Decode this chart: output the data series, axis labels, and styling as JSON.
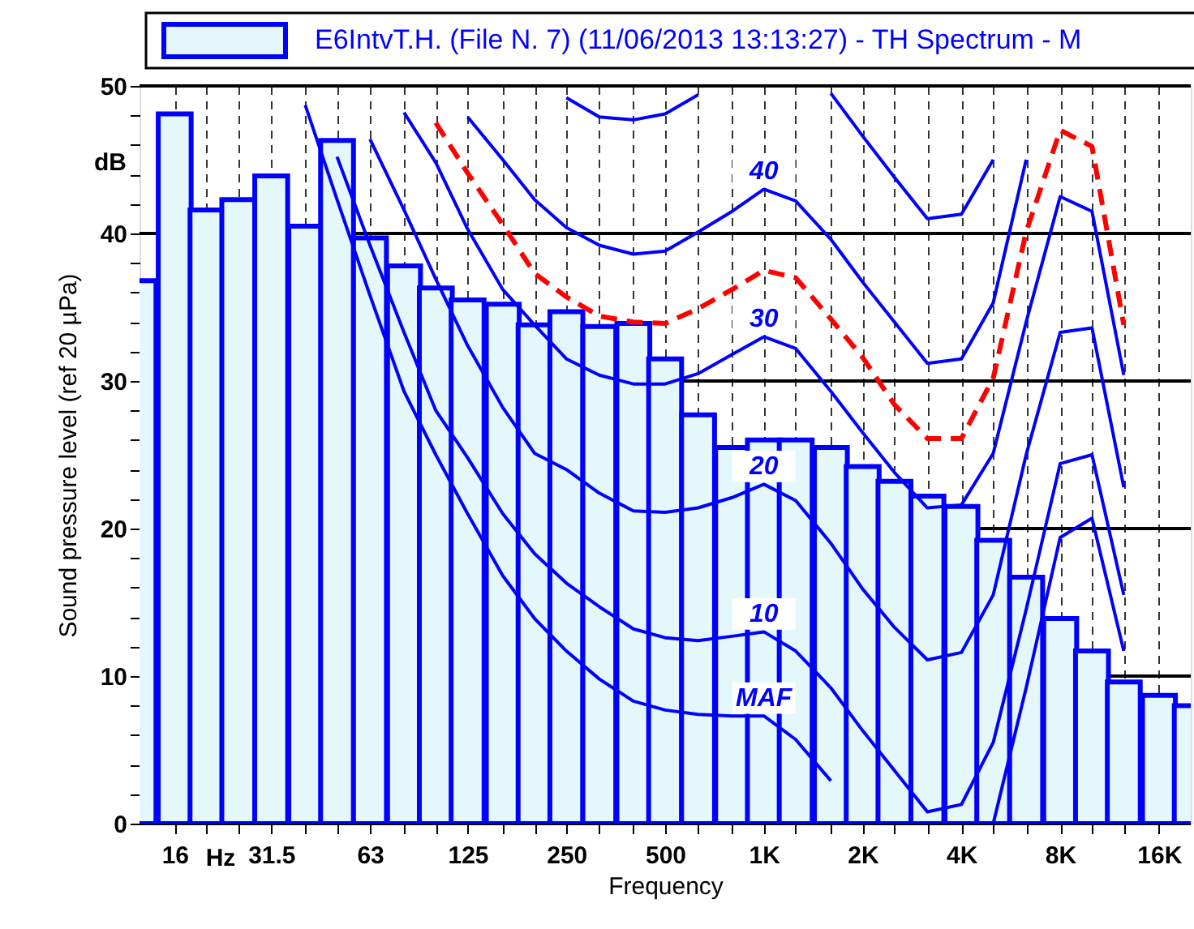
{
  "chart_data": {
    "type": "bar",
    "xlabel": "Frequency",
    "ylabel": "Sound pressure level (ref 20 µPa)",
    "annotations": [
      "dB",
      "Hz"
    ],
    "x": [
      12.5,
      16,
      20,
      25,
      31.5,
      40,
      50,
      63,
      80,
      100,
      125,
      160,
      200,
      250,
      315,
      400,
      500,
      630,
      800,
      1000,
      1250,
      1600,
      2000,
      2500,
      3150,
      4000,
      5000,
      6300,
      8000,
      10000,
      12500,
      16000,
      20000
    ],
    "log": "x",
    "xlim": [
      12.5,
      20000
    ],
    "xticks": [
      16,
      {
        "value": 20,
        "label": null
      },
      {
        "value": 25,
        "label": null
      },
      31.5,
      {
        "value": 40,
        "label": null
      },
      {
        "value": 50,
        "label": null
      },
      63,
      {
        "value": 80,
        "label": null
      },
      {
        "value": 100,
        "label": null
      },
      125,
      {
        "value": 160,
        "label": null
      },
      {
        "value": 200,
        "label": null
      },
      250,
      {
        "value": 315,
        "label": null
      },
      {
        "value": 400,
        "label": null
      },
      500,
      {
        "value": 630,
        "label": null
      },
      {
        "value": 800,
        "label": null
      },
      {
        "value": 1000,
        "label": "1K"
      },
      {
        "value": 1250,
        "label": null
      },
      {
        "value": 1600,
        "label": null
      },
      {
        "value": 2000,
        "label": "2K"
      },
      {
        "value": 2500,
        "label": null
      },
      {
        "value": 3150,
        "label": null
      },
      {
        "value": 4000,
        "label": "4K"
      },
      {
        "value": 5000,
        "label": null
      },
      {
        "value": 6300,
        "label": null
      },
      {
        "value": 8000,
        "label": "8K"
      },
      {
        "value": 10000,
        "label": null
      },
      {
        "value": 12500,
        "label": null
      },
      {
        "value": 16000,
        "label": "16K"
      }
    ],
    "ylim": [
      0,
      50
    ],
    "yticks": [
      0,
      {
        "value": 2,
        "label": null
      },
      {
        "value": 4,
        "label": null
      },
      {
        "value": 6,
        "label": null
      },
      {
        "value": 8,
        "label": null
      },
      10,
      {
        "value": 12,
        "label": null
      },
      {
        "value": 14,
        "label": null
      },
      {
        "value": 16,
        "label": null
      },
      {
        "value": 18,
        "label": null
      },
      20,
      {
        "value": 22,
        "label": null
      },
      {
        "value": 24,
        "label": null
      },
      {
        "value": 26,
        "label": null
      },
      {
        "value": 28,
        "label": null
      },
      30,
      {
        "value": 32,
        "label": null
      },
      {
        "value": 34,
        "label": null
      },
      {
        "value": 36,
        "label": null
      },
      {
        "value": 38,
        "label": null
      },
      40,
      {
        "value": 42,
        "label": null
      },
      {
        "value": 44,
        "label": null
      },
      {
        "value": 46,
        "label": null
      },
      {
        "value": 48,
        "label": null
      },
      50
    ],
    "grid": true,
    "legend": "top",
    "series": [
      {
        "name": "E6IntvT.H. (File N. 7) (11/06/2013 13:13:27) - TH Spectrum - M",
        "color": "#0000ff",
        "values": [
          36.8,
          48.1,
          41.6,
          42.3,
          43.9,
          40.5,
          46.3,
          39.7,
          37.8,
          36.3,
          35.5,
          35.2,
          33.8,
          34.7,
          33.7,
          33.9,
          31.5,
          27.7,
          25.5,
          26.0,
          26.0,
          25.5,
          24.2,
          23.2,
          22.2,
          21.5,
          19.2,
          16.7,
          13.9,
          11.7,
          9.6,
          8.7,
          8.0
        ]
      },
      {
        "name": "MAF",
        "type": "line",
        "color": "#0000ff",
        "line_style": "solid",
        "values": [
          null,
          null,
          null,
          null,
          null,
          48.7,
          42.3,
          35.8,
          29.3,
          25.0,
          21.0,
          16.8,
          13.9,
          11.7,
          9.8,
          8.3,
          7.7,
          7.4,
          7.3,
          7.3,
          5.7,
          2.9,
          null,
          null,
          null,
          null,
          0,
          9.2,
          19.4,
          20.7,
          11.7,
          null,
          null
        ]
      },
      {
        "name": "10",
        "type": "line",
        "color": "#0000ff",
        "line_style": "solid",
        "values": [
          null,
          null,
          null,
          null,
          null,
          null,
          45.2,
          39.2,
          33.3,
          28.0,
          24.8,
          21.0,
          18.3,
          16.3,
          14.7,
          13.2,
          12.6,
          12.4,
          12.7,
          13.0,
          11.7,
          9.2,
          6.3,
          3.6,
          0.8,
          1.3,
          5.5,
          14.5,
          24.4,
          25.0,
          15.5,
          null,
          null
        ]
      },
      {
        "name": "20",
        "type": "line",
        "color": "#0000ff",
        "line_style": "solid",
        "values": [
          null,
          null,
          null,
          null,
          null,
          null,
          null,
          46.4,
          41.6,
          36.9,
          32.4,
          28.2,
          25.1,
          24.0,
          22.4,
          21.2,
          21.1,
          21.4,
          22.1,
          23.0,
          21.9,
          19.0,
          15.9,
          13.3,
          11.1,
          11.6,
          15.5,
          25.0,
          33.3,
          33.6,
          22.8,
          null,
          null
        ]
      },
      {
        "name": "30",
        "type": "line",
        "color": "#0000ff",
        "line_style": "solid",
        "values": [
          null,
          null,
          null,
          null,
          null,
          null,
          null,
          null,
          48.2,
          44.8,
          40.3,
          36.2,
          33.8,
          31.5,
          30.4,
          29.8,
          29.8,
          30.5,
          31.8,
          33.0,
          32.2,
          29.3,
          26.5,
          23.8,
          21.4,
          21.6,
          25.1,
          34.0,
          42.5,
          41.5,
          30.4,
          null,
          null
        ]
      },
      {
        "type": "line",
        "color": "#ff0000",
        "line_style": "dashed",
        "values": [
          null,
          null,
          null,
          null,
          null,
          null,
          null,
          null,
          null,
          47.5,
          44.1,
          40.6,
          37.3,
          35.7,
          34.4,
          34.0,
          33.9,
          34.9,
          36.2,
          37.5,
          37.0,
          34.2,
          31.6,
          28.4,
          26.1,
          26.1,
          30.2,
          40.1,
          47.0,
          45.9,
          33.8,
          null,
          null
        ]
      },
      {
        "name": "40",
        "type": "line",
        "color": "#0000ff",
        "line_style": "solid",
        "values": [
          null,
          null,
          null,
          null,
          null,
          null,
          null,
          null,
          null,
          null,
          47.9,
          45.0,
          42.3,
          40.4,
          39.2,
          38.6,
          38.8,
          40.1,
          41.5,
          43.0,
          42.2,
          39.6,
          36.7,
          34.0,
          31.2,
          31.5,
          35.3,
          45.0,
          null,
          null,
          null,
          null,
          null
        ]
      },
      {
        "type": "line",
        "color": "#0000ff",
        "line_style": "solid",
        "values": [
          null,
          null,
          null,
          null,
          null,
          null,
          null,
          null,
          null,
          null,
          null,
          null,
          null,
          49.2,
          47.9,
          47.7,
          48.1,
          49.4,
          null,
          null,
          null,
          49.5,
          46.6,
          43.8,
          41.0,
          41.3,
          45.0,
          null,
          null,
          null,
          null,
          null,
          null
        ]
      }
    ]
  }
}
